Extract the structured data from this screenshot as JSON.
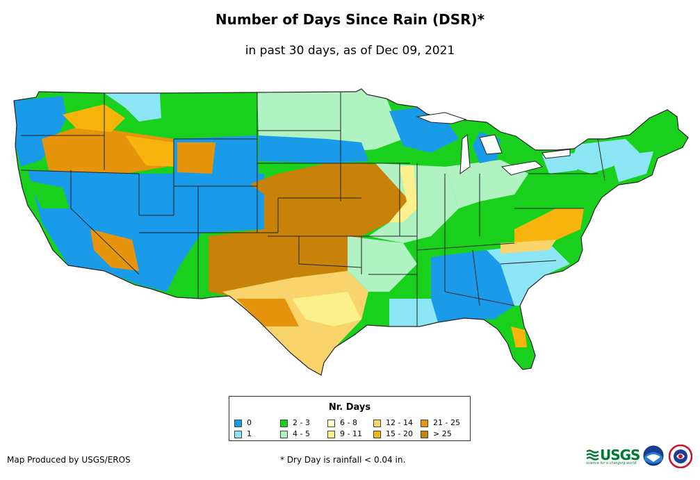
{
  "title": "Number of Days Since Rain (DSR)*",
  "subtitle": "in past 30 days, as of Dec 09, 2021",
  "legend": {
    "title": "Nr. Days",
    "items": [
      {
        "label": "0",
        "color": "#1a9bea"
      },
      {
        "label": "1",
        "color": "#8ce6f5"
      },
      {
        "label": "2 - 3",
        "color": "#19d11c"
      },
      {
        "label": "4 - 5",
        "color": "#b0f2c2"
      },
      {
        "label": "6 - 8",
        "color": "#ffffc8"
      },
      {
        "label": "9 - 11",
        "color": "#fbf08c"
      },
      {
        "label": "12 - 14",
        "color": "#f8d46a"
      },
      {
        "label": "15 - 20",
        "color": "#f6b40c"
      },
      {
        "label": "21 - 25",
        "color": "#e6940c"
      },
      {
        "label": "> 25",
        "color": "#c8820a"
      }
    ]
  },
  "credit": "Map Produced by USGS/EROS",
  "note": "* Dry Day is rainfall < 0.04 in.",
  "logos": {
    "usgs_text": "USGS",
    "usgs_tagline": "science for a changing world"
  }
}
